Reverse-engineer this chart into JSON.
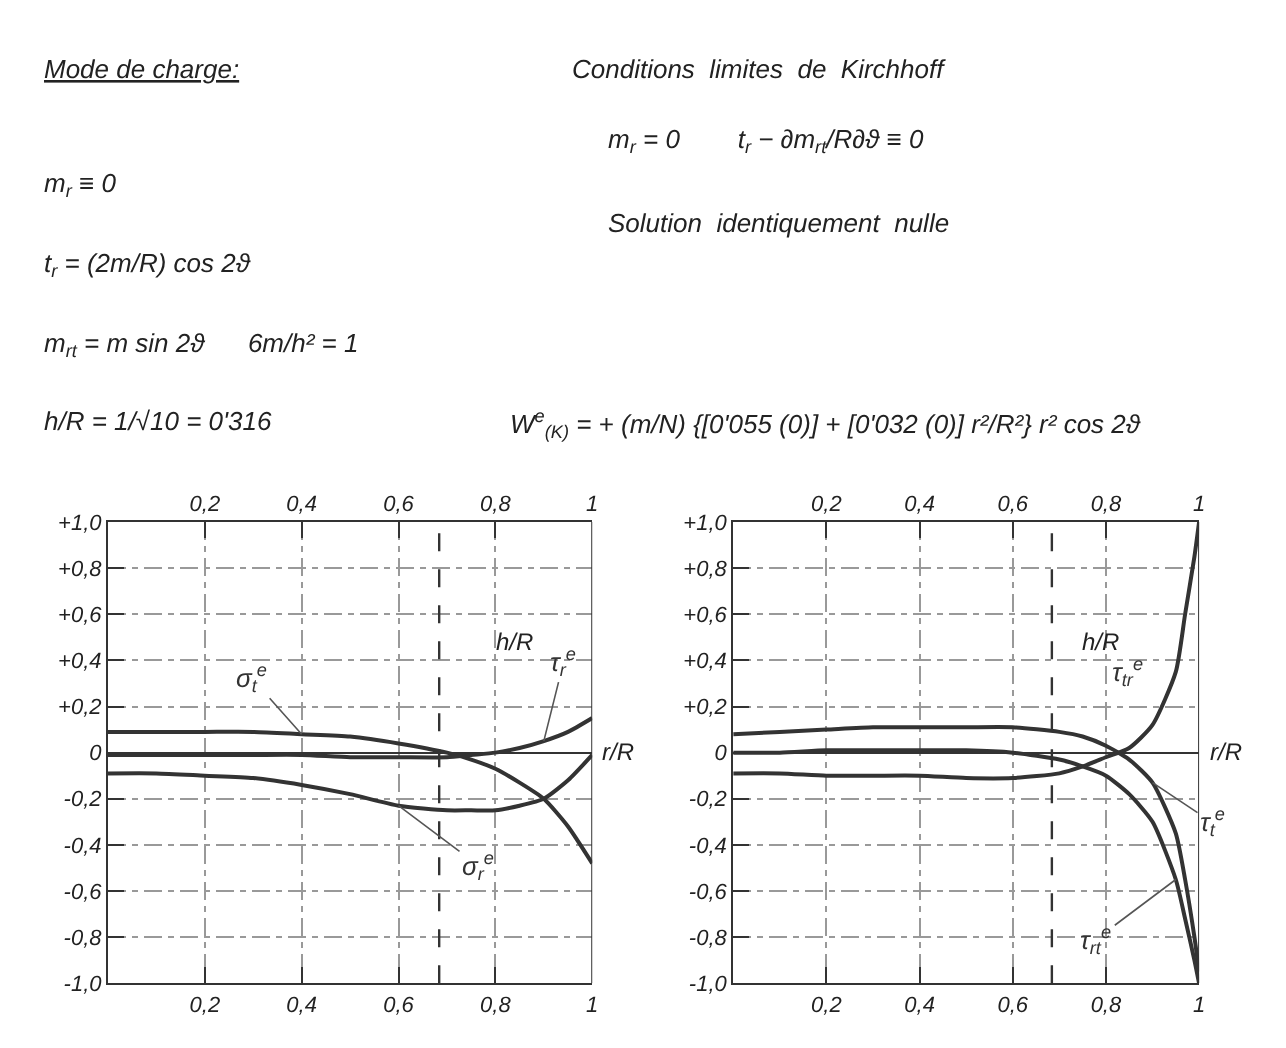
{
  "chart_data": [
    {
      "type": "other",
      "annotations": [
        "Mode de charge:",
        "m$_{r}$ ≡ 0",
        "t$_{r}$ = (2m/R) cos 2ϑ",
        "m$_{rt}$ = m sin 2ϑ      6m/h² = 1",
        "h/R = 1/√10 = 0'316",
        "Conditions  limites  de  Kirchhoff",
        "m$_{r}$ = 0        t$_{r}$ − ∂m$_{rt}$/R∂ϑ ≡ 0",
        "Solution  identiquement  nulle",
        "W$^{e}$$_{(K)}$ = + (m/N) {[0'055 (0)] + [0'032 (0)] r²/R²} r² cos 2ϑ"
      ]
    },
    {
      "type": "line",
      "xlabel": "r/R",
      "xlim": [
        0,
        1
      ],
      "ylim": [
        -1.0,
        1.0
      ],
      "grid": true,
      "line_style": "solid",
      "marker": "none",
      "xticks": [
        {
          "value": 0.2,
          "label": "0,2"
        },
        {
          "value": 0.4,
          "label": "0,4"
        },
        {
          "value": 0.6,
          "label": "0,6"
        },
        {
          "value": 0.8,
          "label": "0,8"
        },
        {
          "value": 1,
          "label": "1"
        }
      ],
      "x2lim": [
        0,
        1
      ],
      "x2ticks": [
        {
          "value": 0.2,
          "label": "0,2"
        },
        {
          "value": 0.4,
          "label": "0,4"
        },
        {
          "value": 0.6,
          "label": "0,6"
        },
        {
          "value": 0.8,
          "label": "0,8"
        },
        {
          "value": 1,
          "label": "1"
        }
      ],
      "yticks": [
        {
          "value": 1.0,
          "label": "+1,0"
        },
        {
          "value": 0.8,
          "label": "+0,8"
        },
        {
          "value": 0.6,
          "label": "+0,6"
        },
        {
          "value": 0.4,
          "label": "+0,4"
        },
        {
          "value": 0.2,
          "label": "+0,2"
        },
        {
          "value": 0,
          "label": "0"
        },
        {
          "value": -0.2,
          "label": "-0,2"
        },
        {
          "value": -0.4,
          "label": "-0,4"
        },
        {
          "value": -0.6,
          "label": "-0,6"
        },
        {
          "value": -0.8,
          "label": "-0,8"
        },
        {
          "value": -1.0,
          "label": "-1,0"
        }
      ],
      "ref_lines": [
        {
          "axis": "x",
          "value": 0.684,
          "label": null,
          "line_style": "dashed",
          "color": "#333333"
        }
      ],
      "annotations": [
        "h/R"
      ],
      "x": [
        0,
        0.1,
        0.2,
        0.3,
        0.4,
        0.5,
        0.6,
        0.7,
        0.75,
        0.8,
        0.85,
        0.9,
        0.95,
        1
      ],
      "series": [
        {
          "name": "σ$_{t}$$^{e}$",
          "color": "#333333",
          "values": [
            0.09,
            0.09,
            0.09,
            0.09,
            0.08,
            0.07,
            0.04,
            0.0,
            -0.03,
            -0.07,
            -0.13,
            -0.2,
            -0.32,
            -0.48
          ]
        },
        {
          "name": "τ$_{r}$$^{e}$",
          "color": "#333333",
          "values": [
            -0.01,
            -0.01,
            -0.01,
            -0.01,
            -0.01,
            -0.02,
            -0.02,
            -0.02,
            -0.01,
            0.0,
            0.02,
            0.05,
            0.09,
            0.15
          ]
        },
        {
          "name": "σ$_{r}$$^{e}$",
          "color": "#333333",
          "values": [
            -0.09,
            -0.09,
            -0.1,
            -0.11,
            -0.14,
            -0.18,
            -0.23,
            -0.25,
            -0.25,
            -0.25,
            -0.23,
            -0.2,
            -0.12,
            -0.01
          ]
        }
      ]
    },
    {
      "type": "line",
      "xlabel": "r/R",
      "xlim": [
        0,
        1
      ],
      "ylim": [
        -1.0,
        1.0
      ],
      "grid": true,
      "line_style": "solid",
      "marker": "none",
      "xticks": [
        {
          "value": 0.2,
          "label": "0,2"
        },
        {
          "value": 0.4,
          "label": "0,4"
        },
        {
          "value": 0.6,
          "label": "0,6"
        },
        {
          "value": 0.8,
          "label": "0,8"
        },
        {
          "value": 1,
          "label": "1"
        }
      ],
      "x2lim": [
        0,
        1
      ],
      "x2ticks": [
        {
          "value": 0.2,
          "label": "0,2"
        },
        {
          "value": 0.4,
          "label": "0,4"
        },
        {
          "value": 0.6,
          "label": "0,6"
        },
        {
          "value": 0.8,
          "label": "0,8"
        },
        {
          "value": 1,
          "label": "1"
        }
      ],
      "yticks": [
        {
          "value": 1.0,
          "label": "+1,0"
        },
        {
          "value": 0.8,
          "label": "+0,8"
        },
        {
          "value": 0.6,
          "label": "+0,6"
        },
        {
          "value": 0.4,
          "label": "+0,4"
        },
        {
          "value": 0.2,
          "label": "+0,2"
        },
        {
          "value": 0,
          "label": "0"
        },
        {
          "value": -0.2,
          "label": "-0,2"
        },
        {
          "value": -0.4,
          "label": "-0,4"
        },
        {
          "value": -0.6,
          "label": "-0,6"
        },
        {
          "value": -0.8,
          "label": "-0,8"
        },
        {
          "value": -1.0,
          "label": "-1,0"
        }
      ],
      "ref_lines": [
        {
          "axis": "x",
          "value": 0.684,
          "label": null,
          "line_style": "dashed",
          "color": "#333333"
        }
      ],
      "annotations": [
        "h/R"
      ],
      "x": [
        0,
        0.1,
        0.2,
        0.3,
        0.4,
        0.5,
        0.6,
        0.7,
        0.75,
        0.8,
        0.85,
        0.9,
        0.95,
        0.97,
        0.99,
        1
      ],
      "series": [
        {
          "name": "τ$_{tr}$$^{e}$",
          "color": "#333333",
          "values": [
            -0.09,
            -0.09,
            -0.1,
            -0.1,
            -0.1,
            -0.11,
            -0.11,
            -0.09,
            -0.06,
            -0.02,
            0.02,
            0.12,
            0.35,
            0.6,
            0.85,
            1.0
          ]
        },
        {
          "name": "τ$_{t}$$^{e}$",
          "color": "#333333",
          "values": [
            0.08,
            0.09,
            0.1,
            0.11,
            0.11,
            0.11,
            0.11,
            0.09,
            0.07,
            0.03,
            -0.03,
            -0.13,
            -0.35,
            -0.55,
            -0.8,
            -0.95
          ]
        },
        {
          "name": "τ$_{rt}$$^{e}$",
          "color": "#333333",
          "values": [
            0.0,
            0.0,
            0.01,
            0.01,
            0.01,
            0.01,
            0.0,
            -0.03,
            -0.06,
            -0.1,
            -0.18,
            -0.3,
            -0.55,
            -0.72,
            -0.9,
            -1.0
          ]
        }
      ]
    }
  ]
}
